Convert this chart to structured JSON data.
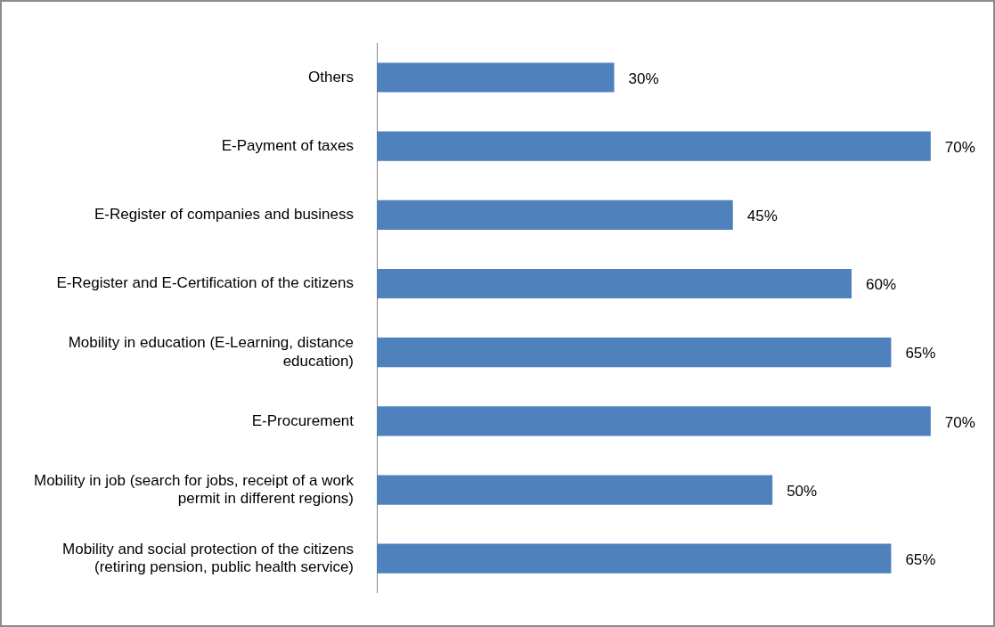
{
  "chart_data": {
    "type": "bar",
    "orientation": "horizontal",
    "categories": [
      "Others",
      "E-Payment of taxes",
      "E-Register of companies and business",
      "E-Register and E-Certification of the citizens",
      "Mobility in education (E-Learning, distance education)",
      "E-Procurement",
      "Mobility in job (search for jobs, receipt of a work permit in different regions)",
      "Mobility and social protection of the citizens (retiring pension, public health service)"
    ],
    "values": [
      30,
      70,
      45,
      60,
      65,
      70,
      50,
      65
    ],
    "value_labels": [
      "30%",
      "70%",
      "45%",
      "60%",
      "65%",
      "70%",
      "50%",
      "65%"
    ],
    "color": "#4f81bd",
    "legend": false
  }
}
